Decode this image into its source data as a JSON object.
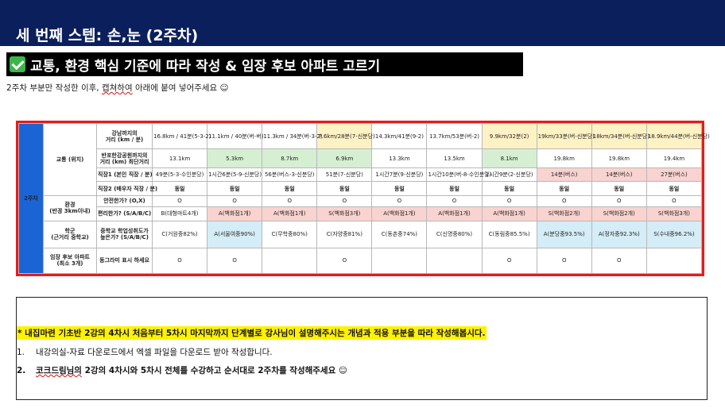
{
  "slide": {
    "title": "세 번째 스텝: 손,눈 (2주차)",
    "subtitle": "교통, 환경 핵심 기준에 따라 작성 & 임장 후보 아파트 고르기",
    "instruction_prefix": "2주차 부분만 작성한 이후, ",
    "instruction_wavy": "캡쳐하여",
    "instruction_suffix": " 아래에 붙여 넣어주세요 ☺"
  },
  "table": {
    "side_label": "2주차",
    "categories": {
      "traffic": "교통 (위치)",
      "environment": "환경\n(반경 3km이내)",
      "school": "학군\n(근거리 중학교)",
      "visit": "임장 후보 아파트\n(최소 3개)"
    },
    "criteria": {
      "gangnam": "강남까지의\n거리 (km / 분)",
      "banpo": "반포한강공원까지의\n거리 (km) 최단거리",
      "jikjang_transit": "직장1 (본인 직장 / 분)",
      "jikjang_spouse": "직장2 (배우자 직장 / 분)",
      "safety": "안전한가? (O,X)",
      "convenience": "편리한가? (S/A/B/C)",
      "middle_school": "중학교 학업성취도가\n높은가? (S/A/B/C)",
      "visit_mark": "동그라미 표시 하세요"
    },
    "columns": [
      {
        "gangnam": "16.8km / 41분(5-3-2)",
        "banpo": "13.1km",
        "jikjang": "49분(5-3-수인분당)",
        "spouse": "동일",
        "safety": "O",
        "convenience": "B(대형마트4개)",
        "school": "C(거원중82%)",
        "visit": "O"
      },
      {
        "gangnam": "11.1km / 40분(버-버)",
        "banpo": "5.3km",
        "jikjang": "1시간6분(5-9-신분당)",
        "spouse": "동일",
        "safety": "O",
        "convenience": "A(백화점1개)",
        "school": "A(서울여중90%)",
        "visit": "O"
      },
      {
        "gangnam": "11.3km / 34분(버-3-2)",
        "banpo": "8.7km",
        "jikjang": "56분(버스-3-신분당)",
        "spouse": "동일",
        "safety": "O",
        "convenience": "A(백화점1개)",
        "school": "C(무학중80%)",
        "visit": ""
      },
      {
        "gangnam": "7.6km/28분(7-신분당)",
        "banpo": "6.9km",
        "jikjang": "51분(7-신분당)",
        "spouse": "동일",
        "safety": "O",
        "convenience": "S(백화점3개)",
        "school": "C(자양중81%)",
        "visit": "O"
      },
      {
        "gangnam": "14.3km/41분(9-2)",
        "banpo": "13.3km",
        "jikjang": "1시간7분(9-신분당)",
        "spouse": "동일",
        "safety": "O",
        "convenience": "A(백화점1개)",
        "school": "C(동촌중74%)",
        "visit": ""
      },
      {
        "gangnam": "13.7km/53분(버-2)",
        "banpo": "13.5km",
        "jikjang": "1시간10분(버-8-수인분당)",
        "spouse": "동일",
        "safety": "O",
        "convenience": "A(백화점1개)",
        "school": "C(신명중80%)",
        "visit": ""
      },
      {
        "gangnam": "9.9km/32분(2)",
        "banpo": "8.1km",
        "jikjang": "1시간9분(2-신분당)",
        "spouse": "동일",
        "safety": "O",
        "convenience": "A(백화점1개)",
        "school": "C(동림중85.5%)",
        "visit": "O"
      },
      {
        "gangnam": "19km/33분(버-신분당)",
        "banpo": "19.8km",
        "jikjang": "14분(버스)",
        "spouse": "동일",
        "safety": "O",
        "convenience": "S(백화점2개)",
        "school": "A(분당중93.5%)",
        "visit": "O"
      },
      {
        "gangnam": "18km/34분(버-신분당)",
        "banpo": "19.8km",
        "jikjang": "14분(버스)",
        "spouse": "동일",
        "safety": "O",
        "convenience": "S(백화점2개)",
        "school": "A(정자중92.3%)",
        "visit": "O"
      },
      {
        "gangnam": "18.9km/44분(버-신분당)",
        "banpo": "19.4km",
        "jikjang": "27분(버스)",
        "spouse": "동일",
        "safety": "O",
        "convenience": "S(백화점3개)",
        "school": "S(수내중96.2%)",
        "visit": ""
      }
    ]
  },
  "notes": {
    "highlight": "* 내집마련 기초반 2강의 4차시 처음부터 5차시 마지막까지 단계별로 강사님이 설명해주시는 개념과 적용 부분을 따라 작성해봅시다.",
    "item1_num": "1.",
    "item1": "내강의실-자료 다운로드에서 엑셀 파일을 다운로드 받아 작성합니다.",
    "item2_num": "2.",
    "item2_wavy": "코크드림님의",
    "item2_rest": " 2강의 4차시와 5차시 전체를 수강하고 순서대로 2주차를 작성해주세요 ☺"
  }
}
